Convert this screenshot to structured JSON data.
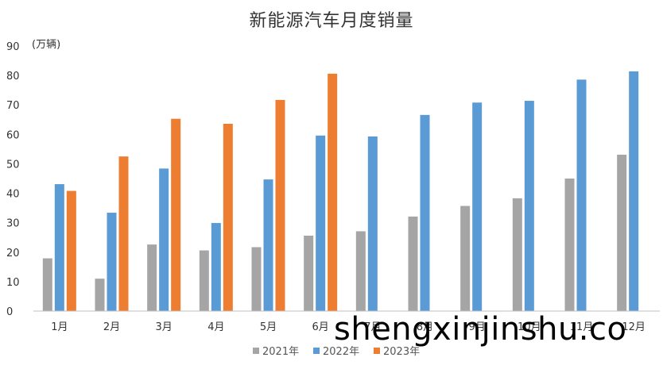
{
  "watermark": "shengxinjinshu.co",
  "chart_data": {
    "type": "bar",
    "title": "新能源汽车月度销量",
    "unit_label": "(万辆)",
    "categories": [
      "1月",
      "2月",
      "3月",
      "4月",
      "5月",
      "6月",
      "7月",
      "8月",
      "9月",
      "10月",
      "11月",
      "12月"
    ],
    "series": [
      {
        "name": "2021年",
        "color": "#a5a5a5",
        "values": [
          17.9,
          11.0,
          22.6,
          20.6,
          21.7,
          25.6,
          27.1,
          32.1,
          35.7,
          38.3,
          45.0,
          53.1
        ]
      },
      {
        "name": "2022年",
        "color": "#5b9bd5",
        "values": [
          43.1,
          33.4,
          48.4,
          29.9,
          44.7,
          59.6,
          59.3,
          66.6,
          70.8,
          71.4,
          78.6,
          81.4
        ]
      },
      {
        "name": "2023年",
        "color": "#ed7d31",
        "values": [
          40.8,
          52.5,
          65.3,
          63.6,
          71.7,
          80.6,
          null,
          null,
          null,
          null,
          null,
          null
        ]
      }
    ],
    "ylim": [
      0,
      90
    ],
    "yticks": [
      0,
      10,
      20,
      30,
      40,
      50,
      60,
      70,
      80,
      90
    ],
    "grid": false,
    "legend_position": "bottom"
  }
}
